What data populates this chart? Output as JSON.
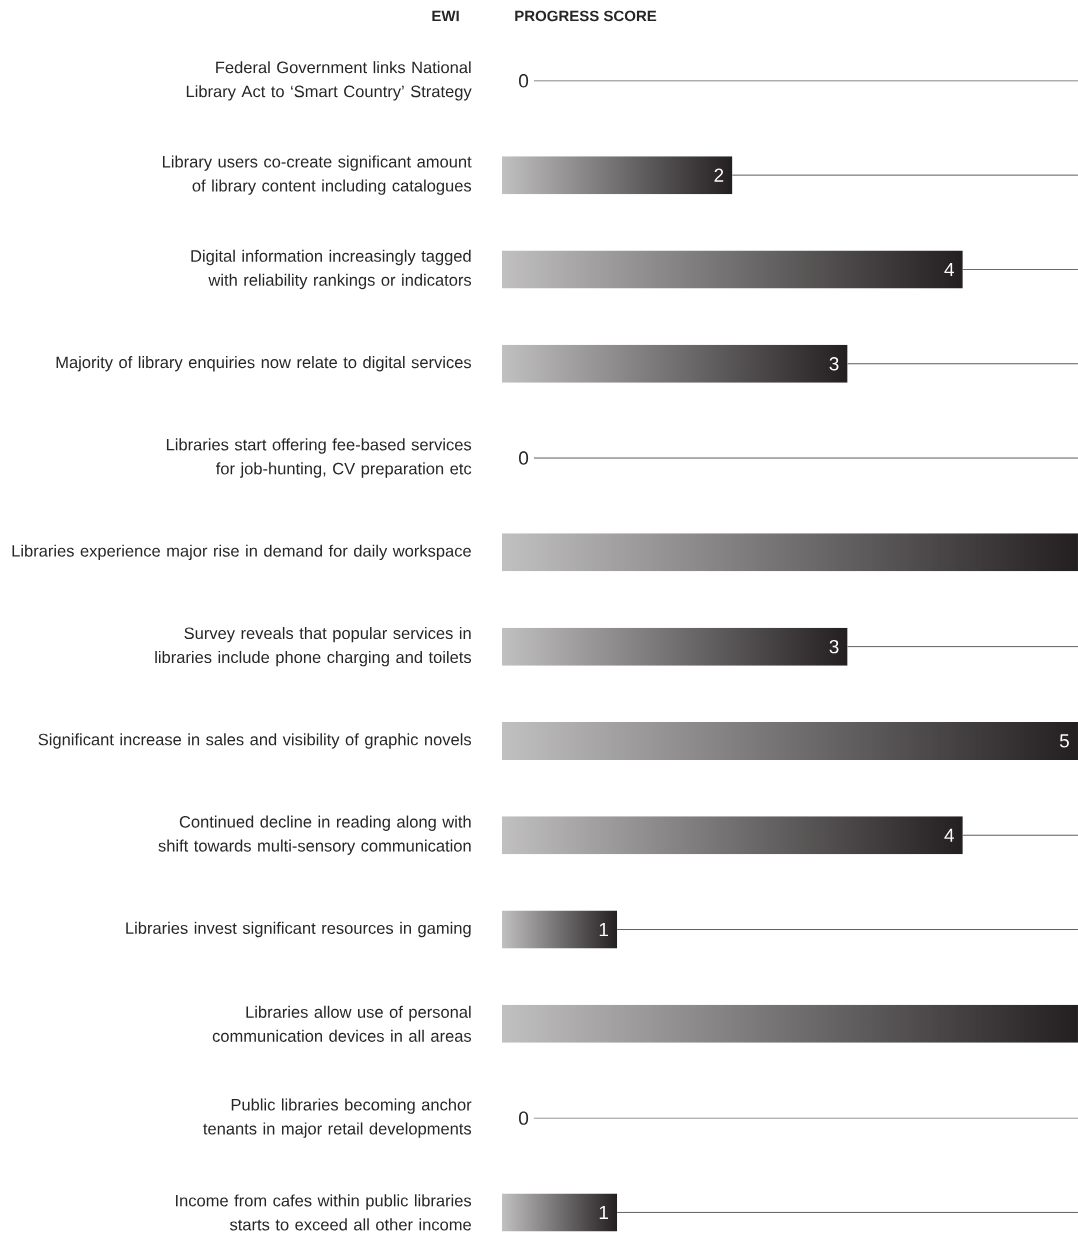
{
  "chart_data": {
    "type": "bar",
    "orientation": "horizontal",
    "xlabel": "PROGRESS SCORE",
    "ylabel": "EWI",
    "categories": [
      "Federal Government links National Library Act to ‘Smart Country’ Strategy",
      "Library users co-create significant amount of library content including catalogues",
      "Digital information increasingly tagged with reliability rankings or indicators",
      "Majority of library enquiries now relate to digital services",
      "Libraries start offering fee-based services for job-hunting, CV preparation etc",
      "Libraries experience major rise in demand for daily workspace",
      "Survey reveals that popular services in libraries include phone charging and toilets",
      "Significant increase in sales and visibility of graphic novels",
      "Continued decline in reading along with shift towards multi-sensory communication",
      "Libraries invest significant resources in gaming",
      "Libraries allow use of personal communication devices in all areas",
      "Public libraries becoming anchor tenants in major retail developments",
      "Income from cafes within public libraries starts to exceed all other income"
    ],
    "values": [
      0,
      2,
      4,
      3,
      0,
      5,
      3,
      5,
      4,
      1,
      5,
      0,
      1
    ],
    "value_labels": [
      "0",
      "2",
      "4",
      "3",
      "0",
      null,
      "3",
      "5",
      "4",
      "1",
      null,
      "0",
      "1"
    ],
    "color": "#231f20",
    "xlim": [
      0,
      5
    ],
    "tick_labels": "y",
    "grid": "y"
  }
}
